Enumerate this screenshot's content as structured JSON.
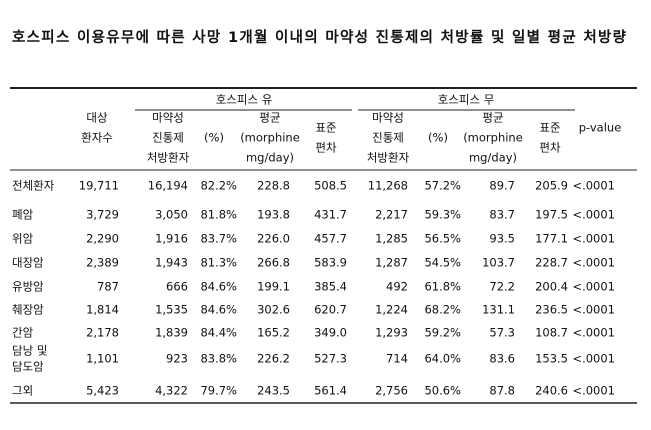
{
  "title": "호스피스 이용유무에 따른 사망 1개월 이내의 마약성 진통제의 처방률 및 일별 평균 처방량",
  "table": {
    "groups": [
      "호스피스 유",
      "호스피스 무"
    ],
    "columns": [
      [
        "대상",
        "환자수"
      ],
      [
        "마약성",
        "진통제",
        "처방환자"
      ],
      [
        "(%)"
      ],
      [
        "평균",
        "(morphine",
        "mg/day)"
      ],
      [
        "표준",
        "편차"
      ],
      [
        "마약성",
        "진통제",
        "처방환자"
      ],
      [
        "(%)"
      ],
      [
        "평균",
        "(morphine",
        "mg/day)"
      ],
      [
        "표준",
        "편차"
      ],
      [
        "p-value"
      ]
    ],
    "rows": [
      {
        "label": [
          "전체환자"
        ],
        "cells": [
          "19,711",
          "16,194",
          "82.2%",
          "228.8",
          "508.5",
          "11,268",
          "57.2%",
          "89.7",
          "205.9",
          "<.0001"
        ]
      },
      {
        "label": [
          "폐암"
        ],
        "cells": [
          "3,729",
          "3,050",
          "81.8%",
          "193.8",
          "431.7",
          "2,217",
          "59.3%",
          "83.7",
          "197.5",
          "<.0001"
        ]
      },
      {
        "label": [
          "위암"
        ],
        "cells": [
          "2,290",
          "1,916",
          "83.7%",
          "226.0",
          "457.7",
          "1,285",
          "56.5%",
          "93.5",
          "177.1",
          "<.0001"
        ]
      },
      {
        "label": [
          "대장암"
        ],
        "cells": [
          "2,389",
          "1,943",
          "81.3%",
          "266.8",
          "583.9",
          "1,287",
          "54.5%",
          "103.7",
          "228.7",
          "<.0001"
        ]
      },
      {
        "label": [
          "유방암"
        ],
        "cells": [
          "787",
          "666",
          "84.6%",
          "199.1",
          "385.4",
          "492",
          "61.8%",
          "72.2",
          "200.4",
          "<.0001"
        ]
      },
      {
        "label": [
          "췌장암"
        ],
        "cells": [
          "1,814",
          "1,535",
          "84.6%",
          "302.6",
          "620.7",
          "1,224",
          "68.2%",
          "131.1",
          "236.5",
          "<.0001"
        ]
      },
      {
        "label": [
          "간암"
        ],
        "cells": [
          "2,178",
          "1,839",
          "84.4%",
          "165.2",
          "349.0",
          "1,293",
          "59.2%",
          "57.3",
          "108.7",
          "<.0001"
        ]
      },
      {
        "label": [
          "담낭 및",
          "담도암"
        ],
        "cells": [
          "1,101",
          "923",
          "83.8%",
          "226.2",
          "527.3",
          "714",
          "64.0%",
          "83.6",
          "153.5",
          "<.0001"
        ]
      },
      {
        "label": [
          "그외"
        ],
        "cells": [
          "5,423",
          "4,322",
          "79.7%",
          "243.5",
          "561.4",
          "2,756",
          "50.6%",
          "87.8",
          "240.6",
          "<.0001"
        ]
      }
    ]
  }
}
